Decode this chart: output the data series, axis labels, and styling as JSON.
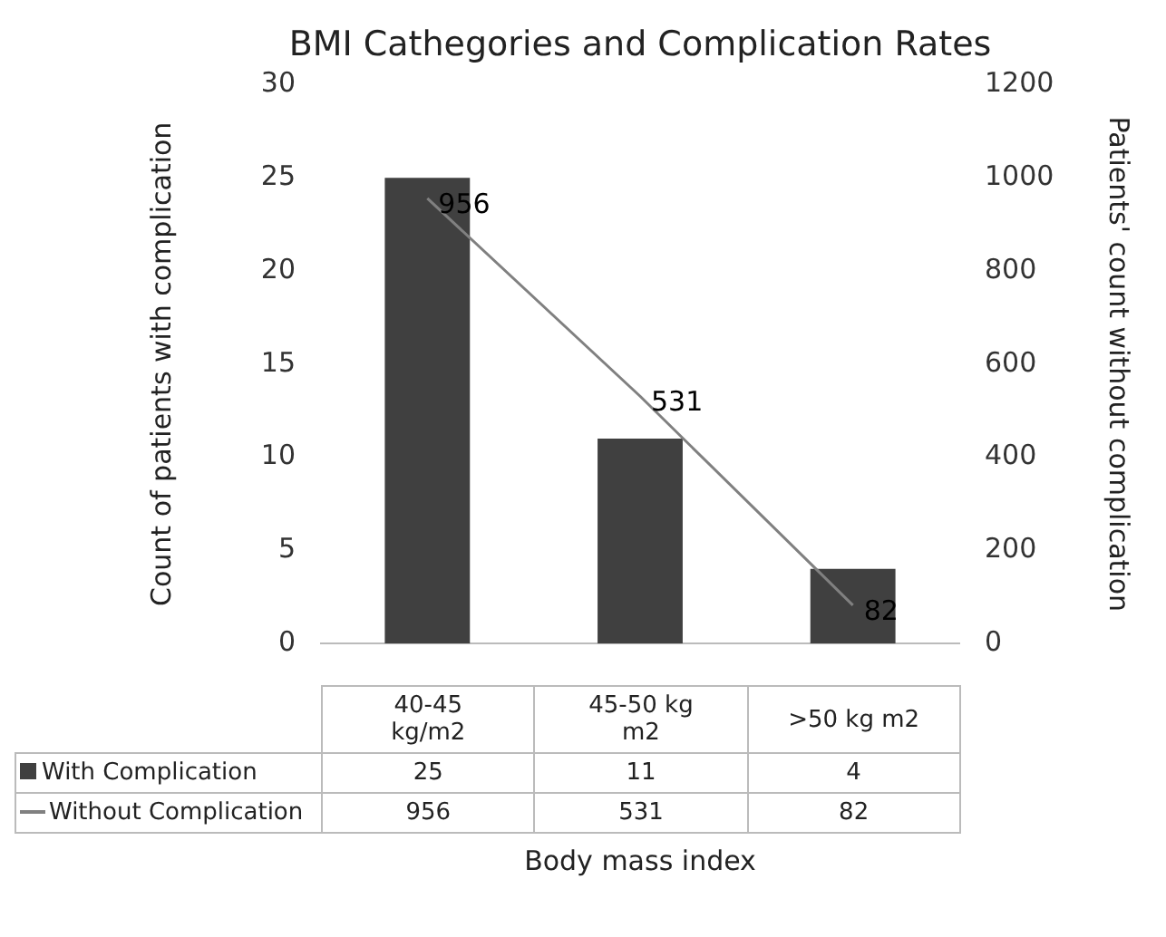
{
  "chart_data": {
    "type": "bar",
    "title": "BMI Cathegories and Complication Rates",
    "xlabel": "Body mass index",
    "ylabel": "Count of patients with complication",
    "y2label": "Patients' count without complication",
    "categories": [
      "40-45 kg/m2",
      "45-50 kg m2",
      ">50 kg m2"
    ],
    "series": [
      {
        "name": "With Complication",
        "color": "#404040",
        "values": [
          25,
          11,
          4
        ]
      },
      {
        "name": "Without Complication",
        "type": "line",
        "axis": "y2",
        "color": "#808080",
        "marker": "none",
        "values": [
          956,
          531,
          82
        ],
        "value_labels": [
          "956",
          "531",
          "82"
        ]
      }
    ],
    "ylim": [
      0,
      30
    ],
    "yticks": [
      0,
      5,
      10,
      15,
      20,
      25,
      30
    ],
    "y2lim": [
      0,
      1200
    ],
    "y2ticks": [
      0,
      200,
      400,
      600,
      800,
      1000,
      1200
    ],
    "data_labels": true,
    "legend": "bottom"
  }
}
